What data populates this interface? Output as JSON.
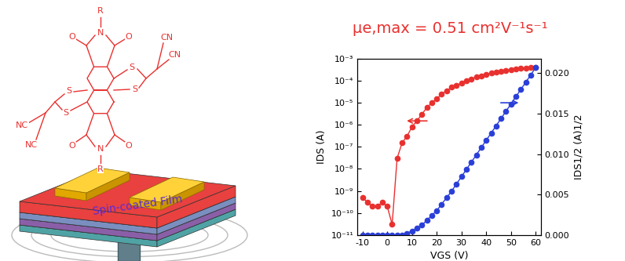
{
  "chart_data": {
    "type": "line",
    "title": "μe,max = 0.51 cm²V⁻¹s⁻¹",
    "x_label": "VGS (V)",
    "y_label": "IDS (A)",
    "y2_label": "IDS1/2 (A)1/2",
    "x": [
      -10,
      -8,
      -6,
      -4,
      -2,
      0,
      2,
      4,
      6,
      8,
      10,
      12,
      14,
      16,
      18,
      20,
      22,
      24,
      26,
      28,
      30,
      32,
      34,
      36,
      38,
      40,
      42,
      44,
      46,
      48,
      50,
      52,
      54,
      56,
      58,
      60
    ],
    "xlim": [
      -12,
      62
    ],
    "xticks": [
      -10,
      0,
      10,
      20,
      30,
      40,
      50,
      60
    ],
    "log": "y",
    "ylim": [
      1e-11,
      0.001
    ],
    "yticks": [
      {
        "value": 1e-11,
        "label": "10⁻¹¹"
      },
      {
        "value": 1e-10,
        "label": "10⁻¹⁰"
      },
      {
        "value": 1e-09,
        "label": "10⁻⁹"
      },
      {
        "value": 1e-08,
        "label": "10⁻⁸"
      },
      {
        "value": 1e-07,
        "label": "10⁻⁷"
      },
      {
        "value": 1e-06,
        "label": "10⁻⁶"
      },
      {
        "value": 1e-05,
        "label": "10⁻⁵"
      },
      {
        "value": 0.0001,
        "label": "10⁻⁴"
      },
      {
        "value": 0.001,
        "label": "10⁻³"
      }
    ],
    "y2lim": [
      0,
      0.0218
    ],
    "y2ticks": [
      {
        "value": 0,
        "label": "0.000"
      },
      {
        "value": 0.005,
        "label": "0.005"
      },
      {
        "value": 0.01,
        "label": "0.010"
      },
      {
        "value": 0.015,
        "label": "0.015"
      },
      {
        "value": 0.02,
        "label": "0.020"
      }
    ],
    "series": [
      {
        "color": "#e8312f",
        "marker": "circle",
        "line_style": "solid",
        "values": [
          5e-10,
          3e-10,
          2e-10,
          2e-10,
          3e-10,
          2e-10,
          3e-11,
          3e-08,
          1.5e-07,
          3e-07,
          8e-07,
          1.5e-06,
          3e-06,
          6e-06,
          1e-05,
          1.5e-05,
          2.5e-05,
          3.5e-05,
          5e-05,
          6e-05,
          8e-05,
          0.0001,
          0.00012,
          0.00015,
          0.00017,
          0.0002,
          0.00022,
          0.00025,
          0.00027,
          0.0003,
          0.00032,
          0.00034,
          0.00036,
          0.00038,
          0.0004,
          0.00042
        ]
      },
      {
        "color": "#2a3fd8",
        "marker": "circle",
        "line_style": "solid",
        "axis": "y2",
        "values": [
          0.0,
          0.0,
          0.0,
          0.0,
          0.0,
          0.0,
          0.0,
          0.0,
          0.0,
          0.0002,
          0.0005,
          0.0008,
          0.0012,
          0.0018,
          0.0024,
          0.003,
          0.0038,
          0.0046,
          0.0054,
          0.0063,
          0.0072,
          0.0081,
          0.009,
          0.0099,
          0.0108,
          0.0117,
          0.0126,
          0.0135,
          0.0144,
          0.0153,
          0.0162,
          0.0171,
          0.018,
          0.0189,
          0.0198,
          0.0207
        ]
      }
    ]
  },
  "diagram": {
    "molecule_labels": [
      "R",
      "O",
      "N",
      "O",
      "S",
      "S",
      "S",
      "S",
      "O",
      "N",
      "O",
      "R",
      "NC",
      "NC",
      "CN",
      "CN"
    ],
    "film_label": "Spin-coated Film"
  }
}
